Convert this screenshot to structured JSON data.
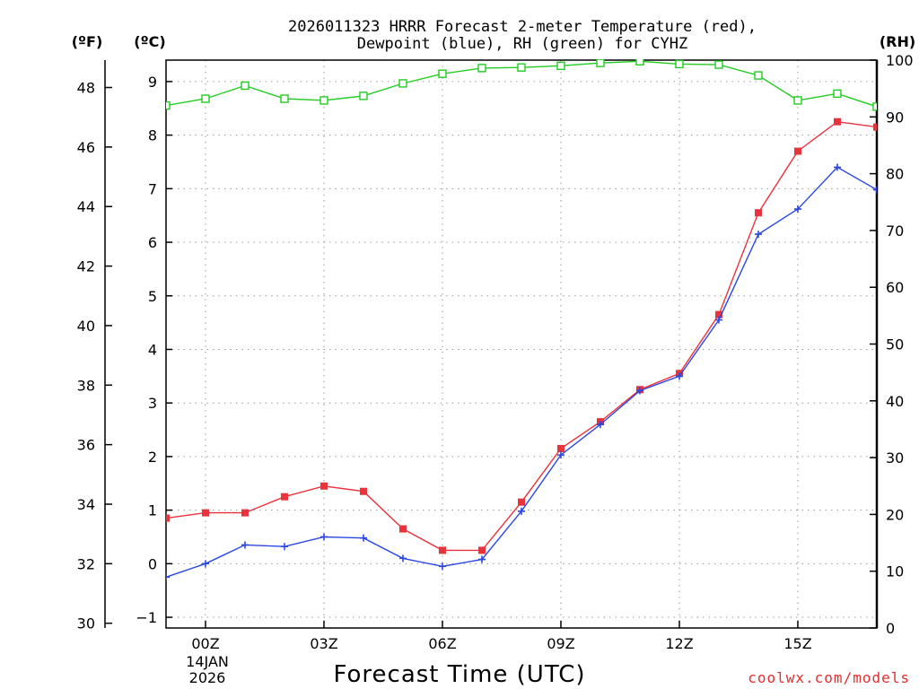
{
  "chart_data": {
    "type": "line",
    "title_line1": "2026011323 HRRR Forecast 2-meter Temperature (red),",
    "title_line2": "Dewpoint (blue), RH (green) for CYHZ",
    "xlabel": "Forecast Time (UTC)",
    "credit": "coolwx.com/models",
    "units": {
      "fahrenheit": "(ºF)",
      "celsius": "(ºC)",
      "rh": "(RH)"
    },
    "x_ticks": [
      {
        "hour": 0,
        "label": "00Z"
      },
      {
        "hour": 3,
        "label": "03Z"
      },
      {
        "hour": 6,
        "label": "06Z"
      },
      {
        "hour": 9,
        "label": "09Z"
      },
      {
        "hour": 12,
        "label": "12Z"
      },
      {
        "hour": 15,
        "label": "15Z"
      }
    ],
    "date_label": {
      "day": "14JAN",
      "year": "2026"
    },
    "xlim": [
      -1,
      17
    ],
    "celsius_axis": {
      "ylim": [
        -1.2,
        9.4
      ],
      "ticks": [
        -1,
        0,
        1,
        2,
        3,
        4,
        5,
        6,
        7,
        8,
        9
      ]
    },
    "fahrenheit_axis": {
      "ticks": [
        30,
        32,
        34,
        36,
        38,
        40,
        42,
        44,
        46,
        48
      ]
    },
    "rh_axis": {
      "ylim": [
        0,
        100
      ],
      "ticks": [
        0,
        10,
        20,
        30,
        40,
        50,
        60,
        70,
        80,
        90,
        100
      ]
    },
    "hours": [
      -1,
      0,
      1,
      2,
      3,
      4,
      5,
      6,
      7,
      8,
      9,
      10,
      11,
      12,
      13,
      14,
      15,
      16,
      17
    ],
    "series": [
      {
        "name": "Temperature",
        "color": "#e8323c",
        "marker": "filled-square",
        "axis": "celsius",
        "values": [
          0.85,
          0.95,
          0.95,
          1.25,
          1.45,
          1.35,
          0.65,
          0.25,
          0.25,
          1.15,
          2.15,
          2.65,
          3.25,
          3.55,
          4.65,
          6.55,
          7.7,
          8.25,
          8.15
        ]
      },
      {
        "name": "Dewpoint",
        "color": "#2a48e0",
        "marker": "plus",
        "axis": "celsius",
        "values": [
          -0.25,
          0.0,
          0.35,
          0.32,
          0.5,
          0.48,
          0.1,
          -0.05,
          0.08,
          0.98,
          2.03,
          2.6,
          3.23,
          3.5,
          4.55,
          6.15,
          6.62,
          7.4,
          6.98
        ]
      },
      {
        "name": "RH",
        "color": "#22cc22",
        "marker": "hollow-square",
        "axis": "rh",
        "values": [
          92,
          93.2,
          95.5,
          93.2,
          92.9,
          93.7,
          95.9,
          97.6,
          98.6,
          98.7,
          99,
          99.5,
          99.8,
          99.3,
          99.2,
          97.3,
          92.9,
          94.1,
          91.8
        ]
      }
    ]
  }
}
